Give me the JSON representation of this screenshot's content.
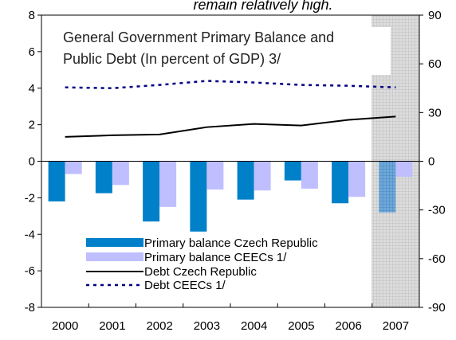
{
  "chart_data": {
    "type": "bar",
    "banner_text": "remain relatively high.",
    "title_lines": [
      "General Government Primary Balance and",
      "Public Debt (In percent of GDP) 3/"
    ],
    "categories": [
      "2000",
      "2001",
      "2002",
      "2003",
      "2004",
      "2005",
      "2006",
      "2007"
    ],
    "left_axis": {
      "ylim": [
        -8,
        8
      ],
      "ticks": [
        "8",
        "6",
        "4",
        "2",
        "0",
        "-2",
        "-4",
        "-6",
        "-8"
      ]
    },
    "right_axis": {
      "ylim": [
        -90,
        90
      ],
      "ticks": [
        "90",
        "60",
        "30",
        "0",
        "-30",
        "-60",
        "-90"
      ]
    },
    "projection_from": "2007",
    "series": [
      {
        "name": "Primary balance Czech Republic",
        "kind": "bar",
        "axis": "left",
        "color": "#0080c8",
        "values": [
          -2.2,
          -1.75,
          -3.3,
          -3.85,
          -2.1,
          -1.05,
          -2.3,
          -2.8
        ]
      },
      {
        "name": "Primary balance CEECs 1/",
        "kind": "bar",
        "axis": "left",
        "color": "#bfbfff",
        "values": [
          -0.7,
          -1.3,
          -2.5,
          -1.55,
          -1.6,
          -1.5,
          -1.95,
          -0.85
        ]
      },
      {
        "name": "Debt Czech Republic",
        "kind": "line",
        "axis": "right",
        "color": "#000000",
        "values": [
          15,
          16,
          16.5,
          21,
          23,
          22,
          25.5,
          27.5
        ]
      },
      {
        "name": "Debt CEECs 1/",
        "kind": "line",
        "axis": "right",
        "color": "#000080",
        "dashed": true,
        "values": [
          45.5,
          45,
          47,
          49.5,
          48.5,
          47,
          46.5,
          45.5
        ]
      }
    ],
    "legend_position": "bottom-left",
    "grid": false
  }
}
